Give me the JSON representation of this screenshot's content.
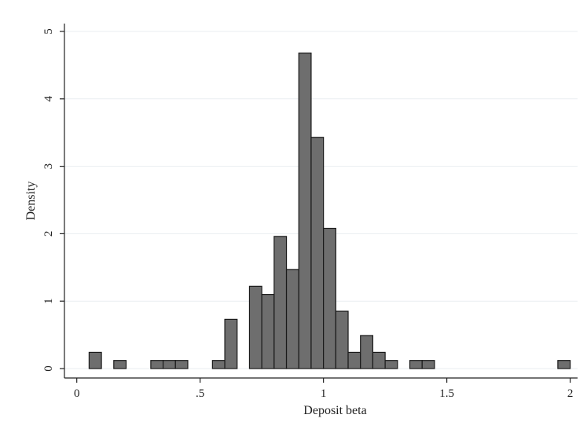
{
  "chart_data": {
    "type": "bar",
    "title": "",
    "xlabel": "Deposit beta",
    "ylabel": "Density",
    "xlim": [
      -0.05,
      2.03
    ],
    "ylim": [
      0,
      5.1
    ],
    "xticks": [
      {
        "value": 0,
        "label": "0"
      },
      {
        "value": 0.5,
        "label": ".5"
      },
      {
        "value": 1,
        "label": "1"
      },
      {
        "value": 1.5,
        "label": "1.5"
      },
      {
        "value": 2,
        "label": "2"
      }
    ],
    "yticks": [
      {
        "value": 0,
        "label": "0"
      },
      {
        "value": 1,
        "label": "1"
      },
      {
        "value": 2,
        "label": "2"
      },
      {
        "value": 3,
        "label": "3"
      },
      {
        "value": 4,
        "label": "4"
      },
      {
        "value": 5,
        "label": "5"
      }
    ],
    "grid": true,
    "bin_width": 0.05,
    "bins": [
      {
        "start": 0.05,
        "value": 0.24
      },
      {
        "start": 0.15,
        "value": 0.12
      },
      {
        "start": 0.3,
        "value": 0.12
      },
      {
        "start": 0.35,
        "value": 0.12
      },
      {
        "start": 0.4,
        "value": 0.12
      },
      {
        "start": 0.55,
        "value": 0.12
      },
      {
        "start": 0.6,
        "value": 0.73
      },
      {
        "start": 0.7,
        "value": 1.22
      },
      {
        "start": 0.75,
        "value": 1.1
      },
      {
        "start": 0.8,
        "value": 1.96
      },
      {
        "start": 0.85,
        "value": 1.47
      },
      {
        "start": 0.9,
        "value": 4.68
      },
      {
        "start": 0.95,
        "value": 3.43
      },
      {
        "start": 1.0,
        "value": 2.08
      },
      {
        "start": 1.05,
        "value": 0.85
      },
      {
        "start": 1.1,
        "value": 0.24
      },
      {
        "start": 1.15,
        "value": 0.49
      },
      {
        "start": 1.2,
        "value": 0.24
      },
      {
        "start": 1.25,
        "value": 0.12
      },
      {
        "start": 1.35,
        "value": 0.12
      },
      {
        "start": 1.4,
        "value": 0.12
      },
      {
        "start": 1.95,
        "value": 0.12
      }
    ],
    "colors": {
      "bar_fill": "#6e6e6e",
      "bar_stroke": "#1a1a1a",
      "grid": "#eaeef1",
      "axis": "#222222"
    }
  }
}
